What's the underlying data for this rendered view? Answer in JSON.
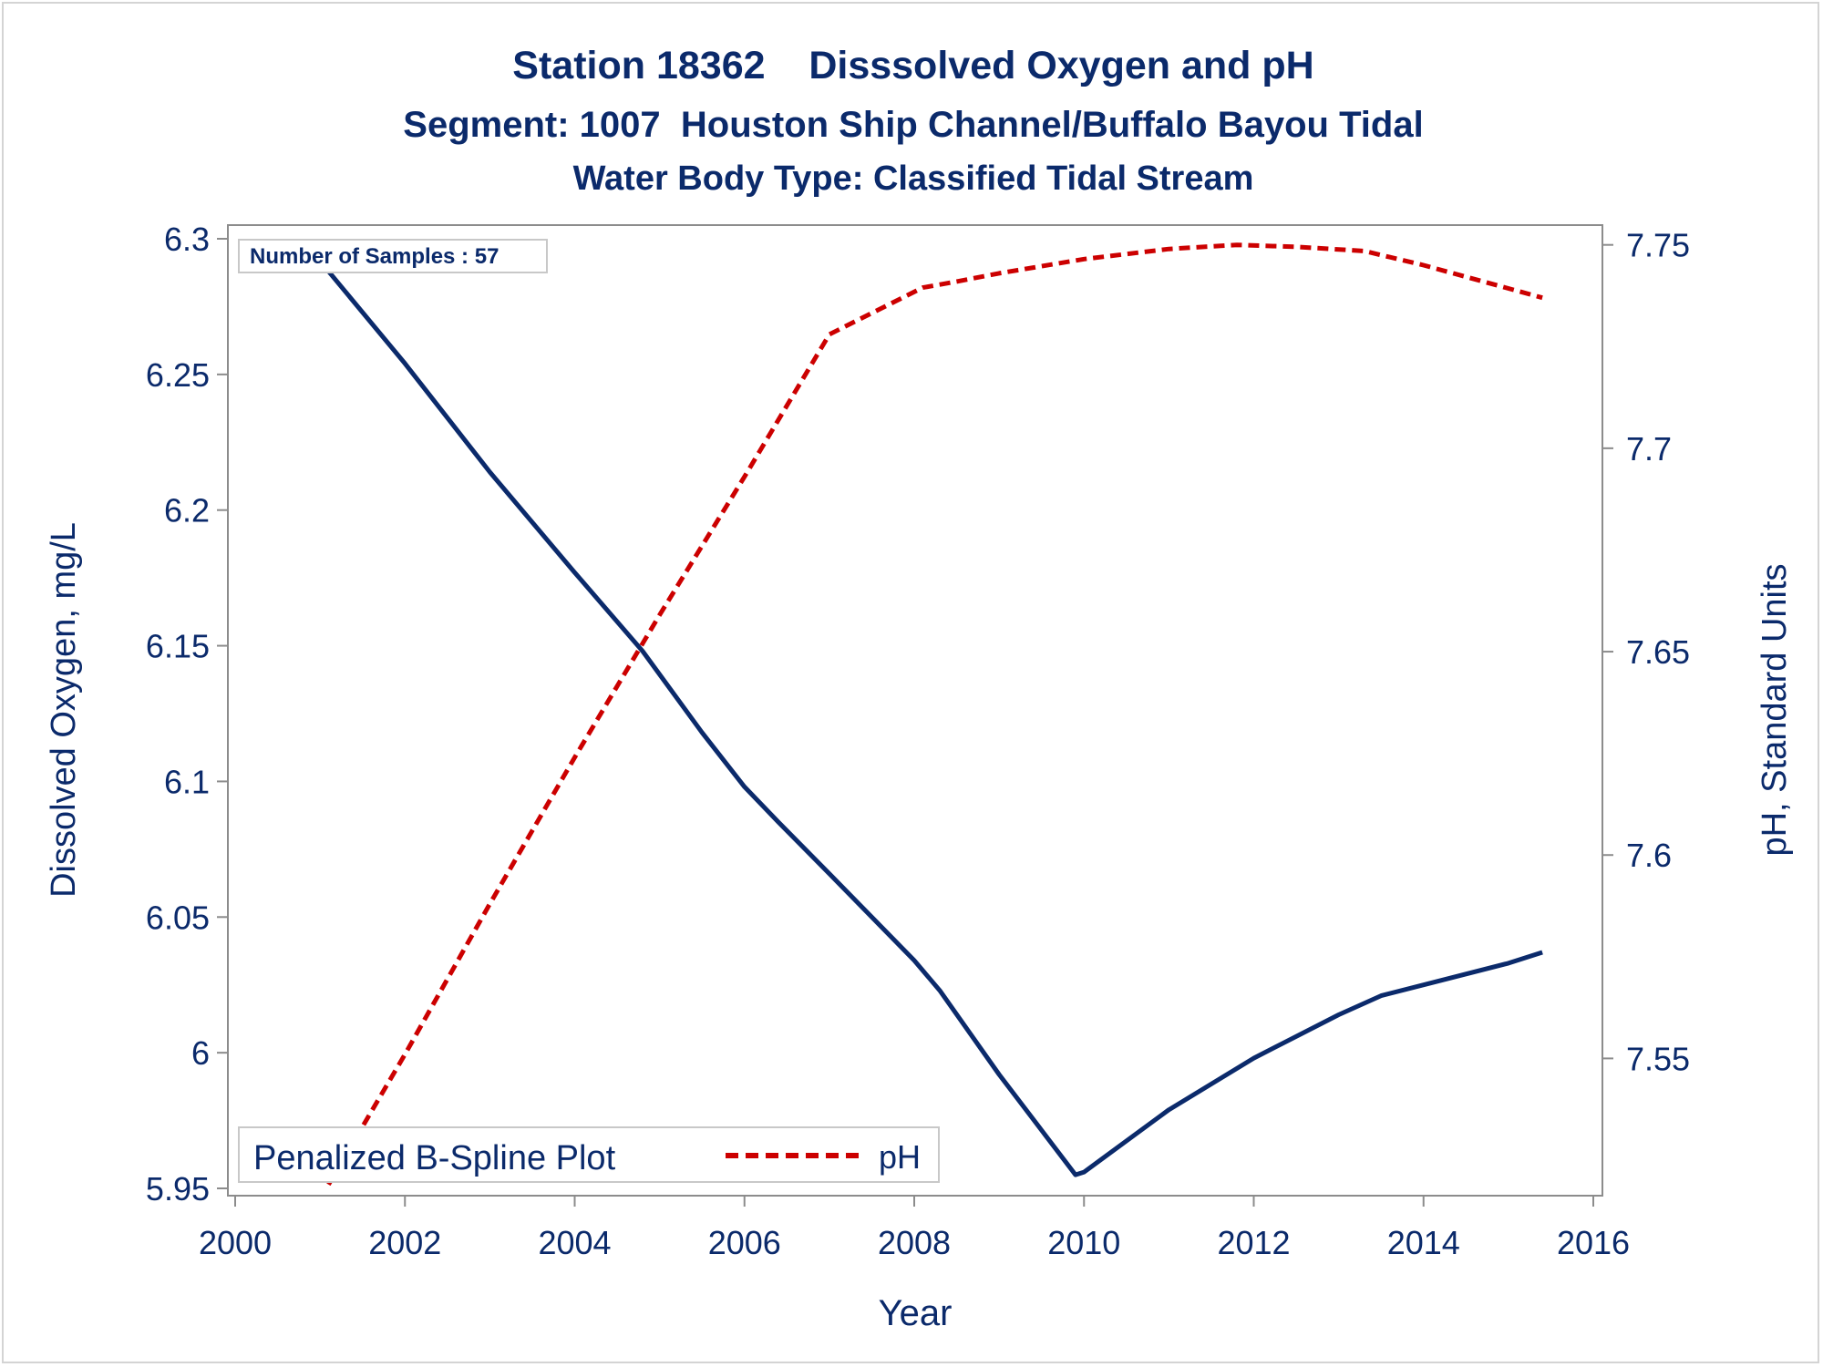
{
  "chart_data": {
    "type": "line",
    "title": "Station 18362    Disssolved Oxygen and pH",
    "subtitle": "Segment: 1007  Houston Ship Channel/Buffalo Bayou Tidal",
    "subtitle2": "Water Body Type: Classified Tidal Stream",
    "xlabel": "Year",
    "ylabel": "Dissolved Oxygen, mg/L",
    "y2label": "pH, Standard Units",
    "xlim": [
      2000,
      2016
    ],
    "ylim": [
      5.95,
      6.3
    ],
    "y2lim": [
      7.5185,
      7.7515
    ],
    "x_ticks": [
      "2000",
      "2002",
      "2004",
      "2006",
      "2008",
      "2010",
      "2012",
      "2014",
      "2016"
    ],
    "y_ticks": [
      "5.95",
      "6",
      "6.05",
      "6.1",
      "6.15",
      "6.2",
      "6.25",
      "6.3"
    ],
    "y2_ticks": [
      "7.55",
      "7.6",
      "7.65",
      "7.7",
      "7.75"
    ],
    "annotation": "Number of Samples : 57",
    "legend": {
      "position": "bottom-left",
      "label": "Penalized B-Spline Plot",
      "entries": [
        "pH"
      ]
    },
    "grid": false,
    "colors": {
      "text": "#0b2a6b",
      "do_line": "#0b2a6b",
      "ph_line": "#cc0000",
      "axis": "#8c8c8c"
    },
    "series": [
      {
        "axis": "left",
        "style": "solid",
        "x": [
          2001.1,
          2002.0,
          2003.0,
          2004.0,
          2004.8,
          2005.5,
          2006.0,
          2006.4,
          2007.0,
          2008.0,
          2008.3,
          2009.0,
          2009.9,
          2010.0,
          2011.0,
          2012.0,
          2013.0,
          2013.5,
          2014.0,
          2015.0,
          2015.4
        ],
        "values": [
          6.288,
          6.254,
          6.214,
          6.177,
          6.148,
          6.118,
          6.098,
          6.085,
          6.066,
          6.034,
          6.023,
          5.992,
          5.955,
          5.956,
          5.979,
          5.998,
          6.014,
          6.021,
          6.025,
          6.033,
          6.037
        ]
      },
      {
        "name": "pH",
        "axis": "right",
        "style": "dashed",
        "x": [
          2001.1,
          2002.0,
          2003.0,
          2004.0,
          2005.0,
          2006.0,
          2007.0,
          2008.1,
          2008.5,
          2009.0,
          2010.0,
          2011.0,
          2011.8,
          2012.5,
          2013.3,
          2014.0,
          2015.4
        ],
        "values": [
          7.519,
          7.551,
          7.588,
          7.624,
          7.659,
          7.693,
          7.728,
          7.7395,
          7.741,
          7.743,
          7.7465,
          7.749,
          7.75,
          7.7495,
          7.7485,
          7.745,
          7.737
        ]
      }
    ]
  }
}
